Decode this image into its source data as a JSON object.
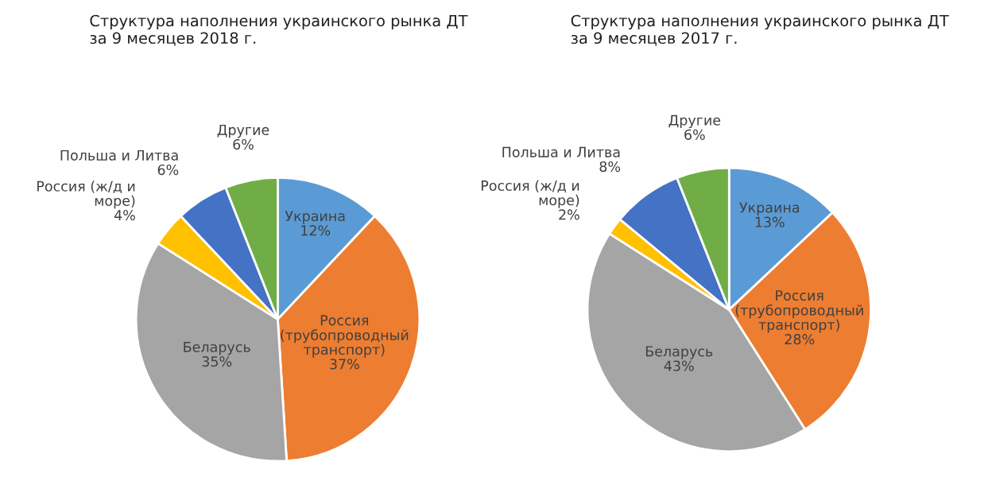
{
  "chart_data": [
    {
      "type": "pie",
      "title": "Структура наполнения украинского рынка ДТ\nза 9 месяцев 2018 г.",
      "categories": [
        "Украина",
        "Россия\n(трубопроводный\nтранспорт)",
        "Беларусь",
        "Россия (ж/д и\nморе)",
        "Польша и Литва",
        "Другие"
      ],
      "values": [
        12,
        37,
        35,
        4,
        6,
        6
      ],
      "value_labels": [
        "12%",
        "37%",
        "35%",
        "4%",
        "6%",
        "6%"
      ],
      "colors": [
        "#5b9bd5",
        "#ed7d31",
        "#a5a5a5",
        "#ffc000",
        "#4472c4",
        "#70ad47"
      ]
    },
    {
      "type": "pie",
      "title": "Структура наполнения украинского рынка ДТ\nза 9 месяцев 2017 г.",
      "categories": [
        "Украина",
        "Россия\n(трубопроводный\nтранспорт)",
        "Беларусь",
        "Россия (ж/д и\nморе)",
        "Польша и Литва",
        "Другие"
      ],
      "values": [
        13,
        28,
        43,
        2,
        8,
        6
      ],
      "value_labels": [
        "13%",
        "28%",
        "43%",
        "2%",
        "8%",
        "6%"
      ],
      "colors": [
        "#5b9bd5",
        "#ed7d31",
        "#a5a5a5",
        "#ffc000",
        "#4472c4",
        "#70ad47"
      ]
    }
  ]
}
